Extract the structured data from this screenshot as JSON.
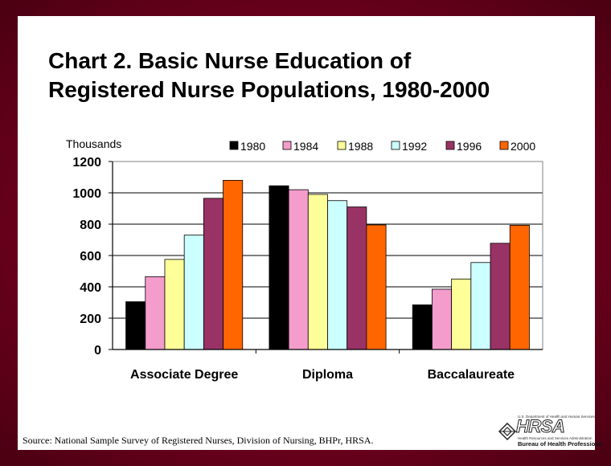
{
  "title": "Chart 2. Basic Nurse Education of\nRegistered Nurse Populations, 1980-2000",
  "source": "Source: National Sample Survey of Registered Nurses, Division of Nursing, BHPr, HRSA.",
  "logo": {
    "agency_top": "U.S. Department of Health and Human Services",
    "name": "HRSA",
    "agency_sub": "Health Resources and Services Administration",
    "bureau": "Bureau of Health Professions"
  },
  "chart_data": {
    "type": "bar",
    "title": "Chart 2. Basic Nurse Education of Registered Nurse Populations, 1980-2000",
    "ylabel": "Thousands",
    "xlabel": "",
    "ylim": [
      0,
      1200
    ],
    "yticks": [
      0,
      200,
      400,
      600,
      800,
      1000,
      1200
    ],
    "grid": true,
    "legend_position": "top",
    "categories": [
      "Associate Degree",
      "Diploma",
      "Baccalaureate"
    ],
    "series": [
      {
        "name": "1980",
        "color": "#000000",
        "values": [
          305,
          1045,
          285
        ]
      },
      {
        "name": "1984",
        "color": "#f49ccc",
        "values": [
          465,
          1020,
          385
        ]
      },
      {
        "name": "1988",
        "color": "#ffff99",
        "values": [
          575,
          990,
          450
        ]
      },
      {
        "name": "1992",
        "color": "#ccffff",
        "values": [
          730,
          950,
          555
        ]
      },
      {
        "name": "1996",
        "color": "#993366",
        "values": [
          965,
          910,
          678
        ]
      },
      {
        "name": "2000",
        "color": "#ff6600",
        "values": [
          1080,
          795,
          793
        ]
      }
    ]
  }
}
